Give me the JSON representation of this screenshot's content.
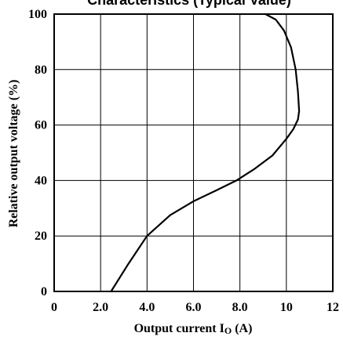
{
  "chart_data": {
    "type": "line",
    "title": "Characteristics (Typical Value)",
    "xlabel": "Output current Io (A)",
    "xlabel_parts": {
      "prefix": "Output current I",
      "subscript": "O",
      "suffix": " (A)"
    },
    "ylabel": "Relative output voltage (%)",
    "xlim": [
      0,
      12
    ],
    "ylim": [
      0,
      100
    ],
    "x_ticks": [
      0,
      2,
      4,
      6,
      8,
      10,
      12
    ],
    "x_tick_labels": [
      "0",
      "2.0",
      "4.0",
      "6.0",
      "8.0",
      "10",
      "12"
    ],
    "y_ticks": [
      0,
      20,
      40,
      60,
      80,
      100
    ],
    "y_tick_labels": [
      "0",
      "20",
      "40",
      "60",
      "80",
      "100"
    ],
    "grid": true,
    "series": [
      {
        "values": [
          [
            2.45,
            0
          ],
          [
            3.2,
            10
          ],
          [
            4.0,
            20
          ],
          [
            5.0,
            27.5
          ],
          [
            6.0,
            32.5
          ],
          [
            7.0,
            36.5
          ],
          [
            7.85,
            40
          ],
          [
            8.6,
            44
          ],
          [
            9.4,
            49
          ],
          [
            10.0,
            55
          ],
          [
            10.3,
            58.5
          ],
          [
            10.5,
            62
          ],
          [
            10.55,
            65
          ],
          [
            10.5,
            72
          ],
          [
            10.4,
            80
          ],
          [
            10.2,
            88
          ],
          [
            9.9,
            94
          ],
          [
            9.55,
            98
          ],
          [
            9.1,
            100
          ]
        ],
        "color": "#000000"
      }
    ]
  }
}
